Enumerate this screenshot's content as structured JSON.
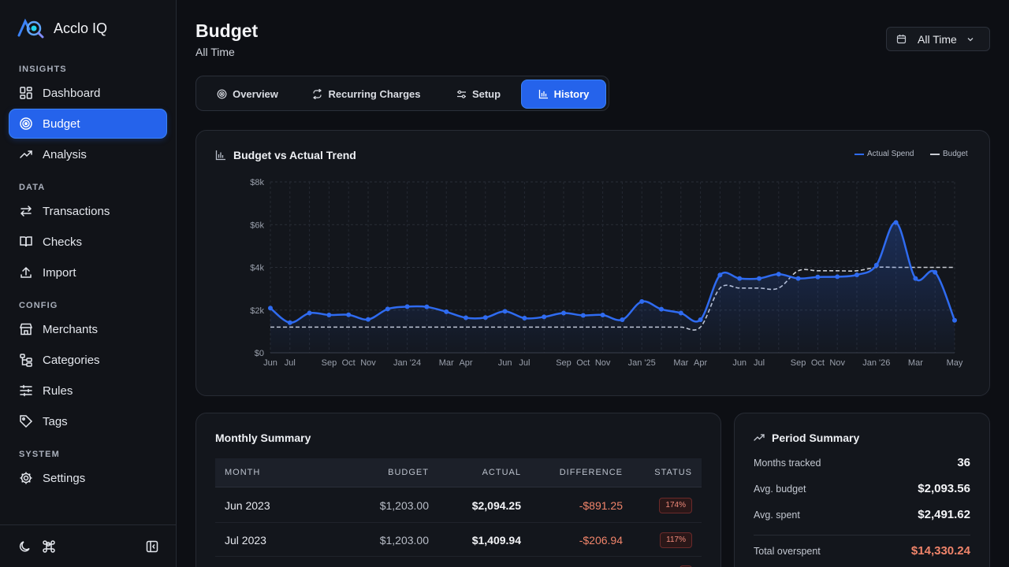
{
  "app": {
    "name": "Acclo IQ"
  },
  "sidebar": {
    "sections": [
      {
        "label": "INSIGHTS"
      },
      {
        "label": "DATA"
      },
      {
        "label": "CONFIG"
      },
      {
        "label": "SYSTEM"
      }
    ],
    "items": [
      {
        "label": "Dashboard",
        "icon": "dashboard-icon"
      },
      {
        "label": "Budget",
        "icon": "target-icon",
        "active": true
      },
      {
        "label": "Analysis",
        "icon": "trending-up-icon"
      },
      {
        "label": "Transactions",
        "icon": "arrows-swap-icon"
      },
      {
        "label": "Checks",
        "icon": "book-open-icon"
      },
      {
        "label": "Import",
        "icon": "upload-icon"
      },
      {
        "label": "Merchants",
        "icon": "store-icon"
      },
      {
        "label": "Categories",
        "icon": "tree-icon"
      },
      {
        "label": "Rules",
        "icon": "sliders-icon"
      },
      {
        "label": "Tags",
        "icon": "tag-icon"
      },
      {
        "label": "Settings",
        "icon": "gear-icon"
      }
    ]
  },
  "header": {
    "title": "Budget",
    "subtitle": "All Time",
    "range_label": "All Time"
  },
  "tabs": [
    {
      "label": "Overview",
      "icon": "target-icon"
    },
    {
      "label": "Recurring Charges",
      "icon": "repeat-icon"
    },
    {
      "label": "Setup",
      "icon": "sliders-icon"
    },
    {
      "label": "History",
      "icon": "bar-chart-icon",
      "active": true
    }
  ],
  "trend_card": {
    "title": "Budget vs Actual Trend"
  },
  "chart_data": {
    "type": "line",
    "title": "Budget vs Actual Trend",
    "legend_position": "top-right",
    "grid": true,
    "ylim": [
      0,
      8000
    ],
    "y_ticks": [
      "$0",
      "$2k",
      "$4k",
      "$6k",
      "$8k"
    ],
    "x_tick_labels": [
      "Jun",
      "Jul",
      "",
      "Sep",
      "Oct",
      "Nov",
      "",
      "Jan '24",
      "",
      "Mar",
      "Apr",
      "",
      "Jun",
      "Jul",
      "",
      "Sep",
      "Oct",
      "Nov",
      "",
      "Jan '25",
      "",
      "Mar",
      "Apr",
      "",
      "Jun",
      "Jul",
      "",
      "Sep",
      "Oct",
      "Nov",
      "",
      "Jan '26",
      "",
      "Mar",
      "",
      "May"
    ],
    "x": [
      "Jun 2023",
      "Jul 2023",
      "Aug 2023",
      "Sep 2023",
      "Oct 2023",
      "Nov 2023",
      "Dec 2023",
      "Jan 2024",
      "Feb 2024",
      "Mar 2024",
      "Apr 2024",
      "May 2024",
      "Jun 2024",
      "Jul 2024",
      "Aug 2024",
      "Sep 2024",
      "Oct 2024",
      "Nov 2024",
      "Dec 2024",
      "Jan 2025",
      "Feb 2025",
      "Mar 2025",
      "Apr 2025",
      "May 2025",
      "Jun 2025",
      "Jul 2025",
      "Aug 2025",
      "Sep 2025",
      "Oct 2025",
      "Nov 2025",
      "Dec 2025",
      "Jan 2026",
      "Feb 2026",
      "Mar 2026",
      "Apr 2026",
      "May 2026"
    ],
    "series": [
      {
        "name": "Actual Spend",
        "color": "#2f6bf0",
        "values": [
          2094,
          1410,
          1860,
          1770,
          1780,
          1560,
          2050,
          2160,
          2150,
          1920,
          1640,
          1650,
          1940,
          1620,
          1680,
          1860,
          1750,
          1770,
          1550,
          2400,
          2040,
          1860,
          1550,
          3640,
          3480,
          3480,
          3680,
          3480,
          3550,
          3560,
          3650,
          4100,
          6100,
          3480,
          3770,
          1520
        ]
      },
      {
        "name": "Budget",
        "color": "#c9ccd3",
        "dashed": true,
        "values": [
          1203,
          1203,
          1203,
          1203,
          1203,
          1203,
          1203,
          1203,
          1203,
          1203,
          1203,
          1203,
          1203,
          1203,
          1203,
          1203,
          1203,
          1203,
          1203,
          1203,
          1203,
          1203,
          1203,
          3030,
          3030,
          3030,
          3030,
          3840,
          3840,
          3840,
          3840,
          4000,
          4000,
          4000,
          4000,
          4000
        ]
      }
    ]
  },
  "monthly": {
    "title": "Monthly Summary",
    "columns": [
      "MONTH",
      "BUDGET",
      "ACTUAL",
      "DIFFERENCE",
      "STATUS"
    ],
    "rows": [
      {
        "month": "Jun 2023",
        "budget": "$1,203.00",
        "actual": "$2,094.25",
        "difference": "-$891.25",
        "status": "174%"
      },
      {
        "month": "Jul 2023",
        "budget": "$1,203.00",
        "actual": "$1,409.94",
        "difference": "-$206.94",
        "status": "117%"
      }
    ]
  },
  "period": {
    "title": "Period Summary",
    "rows": [
      {
        "label": "Months tracked",
        "value": "36"
      },
      {
        "label": "Avg. budget",
        "value": "$2,093.56"
      },
      {
        "label": "Avg. spent",
        "value": "$2,491.62"
      },
      {
        "label": "Total overspent",
        "value": "$14,330.24",
        "color": "#f0846a"
      }
    ]
  },
  "colors": {
    "accent": "#2563eb",
    "negative": "#f0846a",
    "background": "#0d0f14"
  }
}
